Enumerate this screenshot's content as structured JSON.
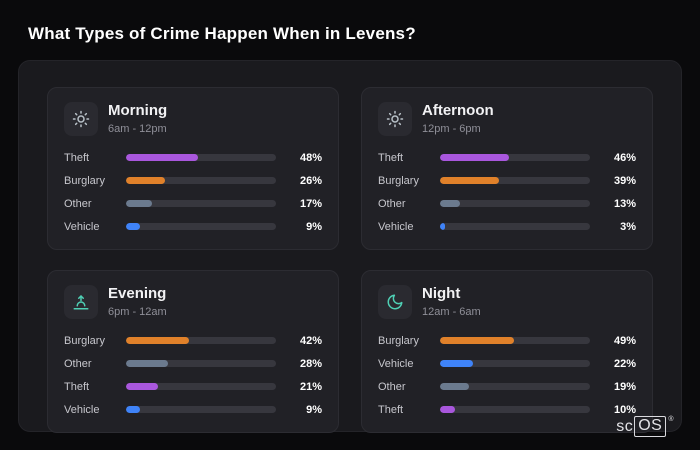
{
  "page": {
    "title": "What Types of Crime Happen When in Levens?"
  },
  "brand": {
    "prefix": "sc",
    "boxed": "OS",
    "reg": "®"
  },
  "colors": {
    "theft": "#a957dd",
    "burglary": "#e0812a",
    "other": "#6b7a8e",
    "vehicle": "#3f83f8",
    "icon_teal": "#4fd0b5",
    "icon_gray": "#b9c2c9"
  },
  "chart_data": [
    {
      "type": "bar",
      "title": "Morning",
      "subtitle": "6am - 12pm",
      "icon": "sun-icon",
      "xlim": [
        0,
        100
      ],
      "categories": [
        "Theft",
        "Burglary",
        "Other",
        "Vehicle"
      ],
      "values": [
        48,
        26,
        17,
        9
      ],
      "rows": [
        {
          "label": "Theft",
          "value": 48,
          "pct": "48%",
          "color": "#a957dd"
        },
        {
          "label": "Burglary",
          "value": 26,
          "pct": "26%",
          "color": "#e0812a"
        },
        {
          "label": "Other",
          "value": 17,
          "pct": "17%",
          "color": "#6b7a8e"
        },
        {
          "label": "Vehicle",
          "value": 9,
          "pct": "9%",
          "color": "#3f83f8"
        }
      ]
    },
    {
      "type": "bar",
      "title": "Afternoon",
      "subtitle": "12pm - 6pm",
      "icon": "sun-icon",
      "xlim": [
        0,
        100
      ],
      "categories": [
        "Theft",
        "Burglary",
        "Other",
        "Vehicle"
      ],
      "values": [
        46,
        39,
        13,
        3
      ],
      "rows": [
        {
          "label": "Theft",
          "value": 46,
          "pct": "46%",
          "color": "#a957dd"
        },
        {
          "label": "Burglary",
          "value": 39,
          "pct": "39%",
          "color": "#e0812a"
        },
        {
          "label": "Other",
          "value": 13,
          "pct": "13%",
          "color": "#6b7a8e"
        },
        {
          "label": "Vehicle",
          "value": 3,
          "pct": "3%",
          "color": "#3f83f8"
        }
      ]
    },
    {
      "type": "bar",
      "title": "Evening",
      "subtitle": "6pm - 12am",
      "icon": "sunset-icon",
      "xlim": [
        0,
        100
      ],
      "categories": [
        "Burglary",
        "Other",
        "Theft",
        "Vehicle"
      ],
      "values": [
        42,
        28,
        21,
        9
      ],
      "rows": [
        {
          "label": "Burglary",
          "value": 42,
          "pct": "42%",
          "color": "#e0812a"
        },
        {
          "label": "Other",
          "value": 28,
          "pct": "28%",
          "color": "#6b7a8e"
        },
        {
          "label": "Theft",
          "value": 21,
          "pct": "21%",
          "color": "#a957dd"
        },
        {
          "label": "Vehicle",
          "value": 9,
          "pct": "9%",
          "color": "#3f83f8"
        }
      ]
    },
    {
      "type": "bar",
      "title": "Night",
      "subtitle": "12am - 6am",
      "icon": "moon-icon",
      "xlim": [
        0,
        100
      ],
      "categories": [
        "Burglary",
        "Vehicle",
        "Other",
        "Theft"
      ],
      "values": [
        49,
        22,
        19,
        10
      ],
      "rows": [
        {
          "label": "Burglary",
          "value": 49,
          "pct": "49%",
          "color": "#e0812a"
        },
        {
          "label": "Vehicle",
          "value": 22,
          "pct": "22%",
          "color": "#3f83f8"
        },
        {
          "label": "Other",
          "value": 19,
          "pct": "19%",
          "color": "#6b7a8e"
        },
        {
          "label": "Theft",
          "value": 10,
          "pct": "10%",
          "color": "#a957dd"
        }
      ]
    }
  ]
}
